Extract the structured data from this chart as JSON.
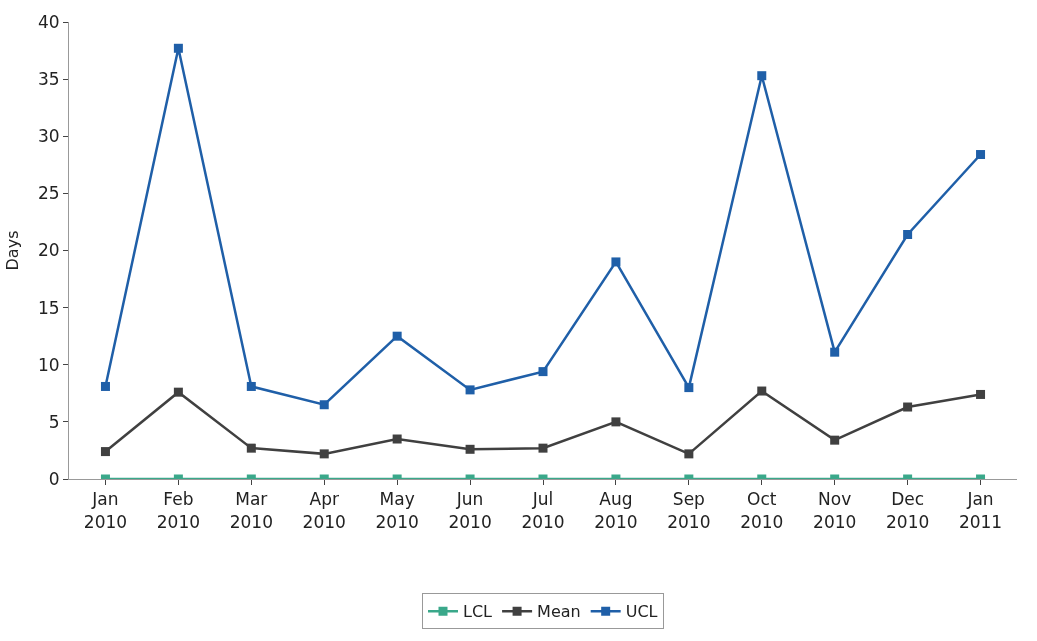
{
  "chart_data": {
    "type": "line",
    "ylabel": "Days",
    "categories": [
      "Jan 2010",
      "Feb 2010",
      "Mar 2010",
      "Apr 2010",
      "May 2010",
      "Jun 2010",
      "Jul 2010",
      "Aug 2010",
      "Sep 2010",
      "Oct 2010",
      "Nov 2010",
      "Dec 2010",
      "Jan 2011"
    ],
    "series": [
      {
        "name": "LCL",
        "color": "#3aa88a",
        "values": [
          0,
          0,
          0,
          0,
          0,
          0,
          0,
          0,
          0,
          0,
          0,
          0,
          0
        ]
      },
      {
        "name": "Mean",
        "color": "#404040",
        "values": [
          2.4,
          7.6,
          2.7,
          2.2,
          3.5,
          2.6,
          2.7,
          5.0,
          2.2,
          7.7,
          3.4,
          6.3,
          7.4
        ]
      },
      {
        "name": "UCL",
        "color": "#1f5fa8",
        "values": [
          8.1,
          37.7,
          8.1,
          6.5,
          12.5,
          7.8,
          9.4,
          19.0,
          8.0,
          35.3,
          11.1,
          21.4,
          28.4
        ]
      }
    ],
    "ylim": [
      0,
      40
    ],
    "yticks": [
      0,
      5,
      10,
      15,
      20,
      25,
      30,
      35,
      40
    ],
    "legend": "bottom",
    "marker": "square",
    "line_style": "solid"
  }
}
